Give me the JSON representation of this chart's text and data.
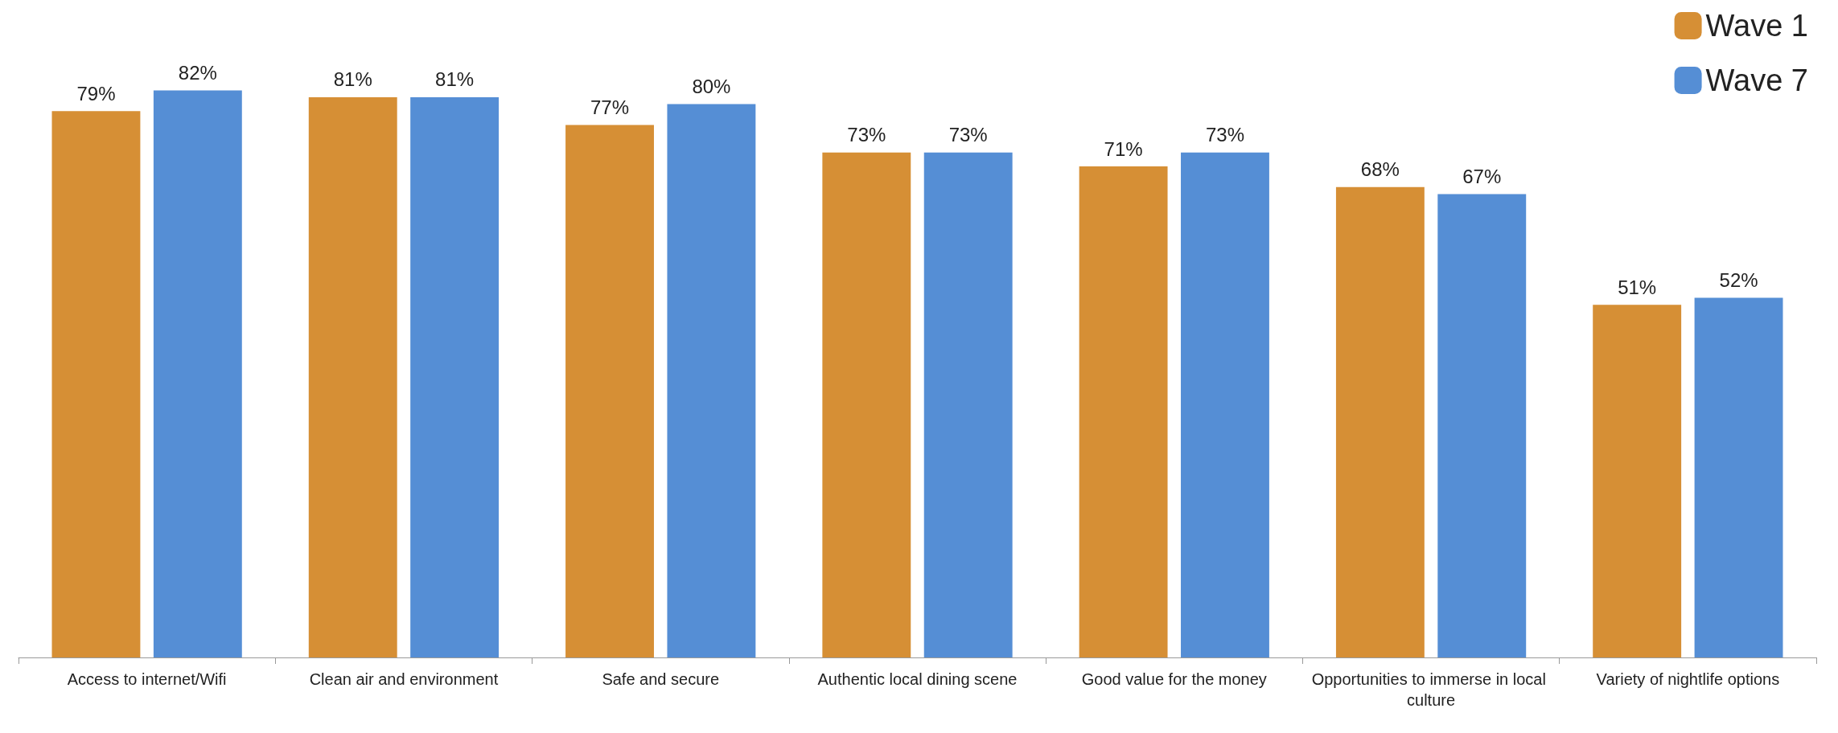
{
  "chart_data": {
    "type": "bar",
    "categories": [
      "Access to internet/Wifi",
      "Clean air and environment",
      "Safe and secure",
      "Authentic local dining scene",
      "Good value for the money",
      "Opportunities to immerse in local culture",
      "Variety of nightlife options"
    ],
    "series": [
      {
        "name": "Wave 1",
        "color": "#d68f35",
        "values": [
          79,
          81,
          77,
          73,
          71,
          68,
          51
        ],
        "value_labels": [
          "79%",
          "81%",
          "77%",
          "73%",
          "71%",
          "68%",
          "51%"
        ]
      },
      {
        "name": "Wave 7",
        "color": "#558ed5",
        "values": [
          82,
          81,
          80,
          73,
          73,
          67,
          52
        ],
        "value_labels": [
          "82%",
          "81%",
          "80%",
          "73%",
          "73%",
          "67%",
          "52%"
        ]
      }
    ],
    "legend": "top right",
    "grid": false
  }
}
